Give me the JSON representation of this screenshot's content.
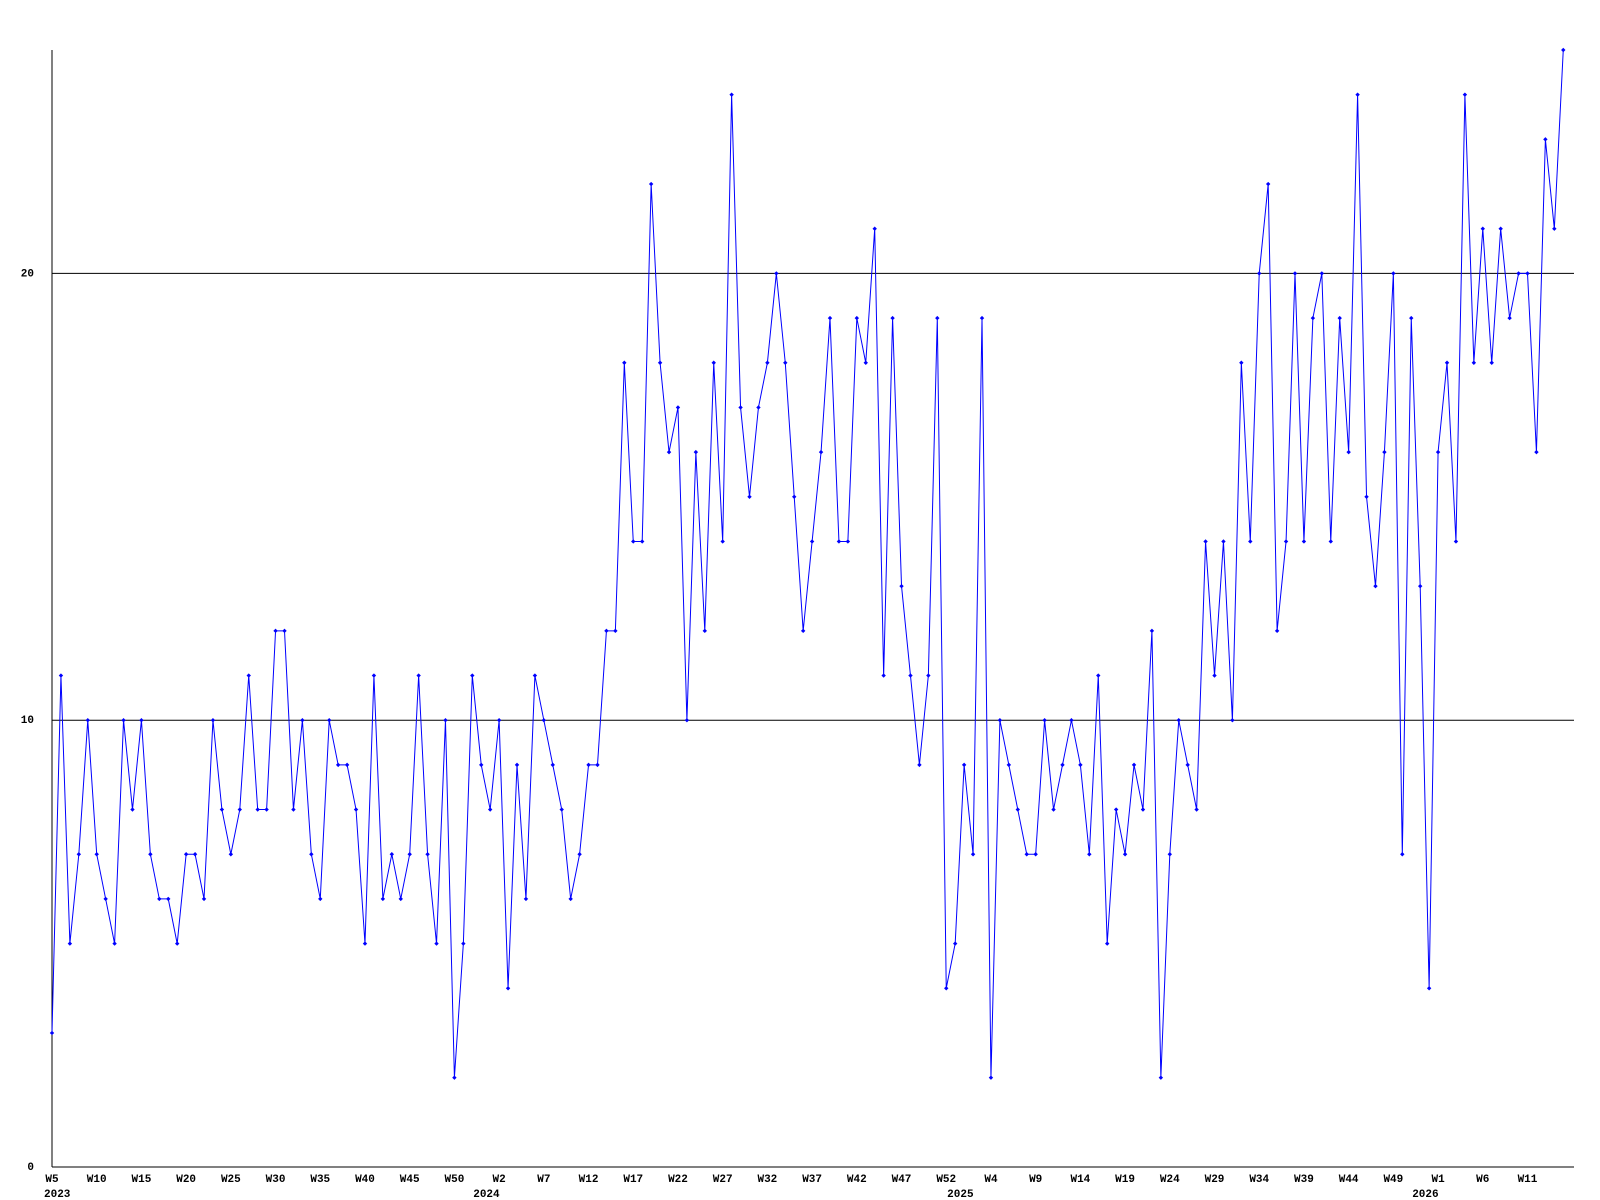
{
  "chart_data": {
    "type": "line",
    "categories": [
      "W5",
      null,
      null,
      null,
      null,
      "W10",
      null,
      null,
      null,
      null,
      "W15",
      null,
      null,
      null,
      null,
      "W20",
      null,
      null,
      null,
      null,
      "W25",
      null,
      null,
      null,
      null,
      "W30",
      null,
      null,
      null,
      null,
      "W35",
      null,
      null,
      null,
      null,
      "W40",
      null,
      null,
      null,
      null,
      "W45",
      null,
      null,
      null,
      null,
      "W50",
      null,
      null,
      null,
      null,
      "W2",
      null,
      null,
      null,
      null,
      "W7",
      null,
      null,
      null,
      null,
      "W12",
      null,
      null,
      null,
      null,
      "W17",
      null,
      null,
      null,
      null,
      "W22",
      null,
      null,
      null,
      null,
      "W27",
      null,
      null,
      null,
      null,
      "W32",
      null,
      null,
      null,
      null,
      "W37",
      null,
      null,
      null,
      null,
      "W42",
      null,
      null,
      null,
      null,
      "W47",
      null,
      null,
      null,
      null,
      "W52",
      null,
      null,
      null,
      null,
      "W4",
      null,
      null,
      null,
      null,
      "W9",
      null,
      null,
      null,
      null,
      "W14",
      null,
      null,
      null,
      null,
      "W19",
      null,
      null,
      null,
      null,
      "W24",
      null,
      null,
      null,
      null,
      "W29",
      null,
      null,
      null,
      null,
      "W34",
      null,
      null,
      null,
      null,
      "W39",
      null,
      null,
      null,
      null,
      "W44",
      null,
      null,
      null,
      null,
      "W49",
      null,
      null,
      null,
      null,
      "W1",
      null,
      null,
      null,
      null,
      "W6",
      null,
      null,
      null,
      null,
      "W11",
      null,
      null,
      null,
      null
    ],
    "year_labels": [
      {
        "category": 0,
        "label": "2023"
      },
      {
        "category": 48,
        "label": "2024"
      },
      {
        "category": 101,
        "label": "2025"
      },
      {
        "category": 153,
        "label": "2026"
      }
    ],
    "series": [
      {
        "color": "#0000ff",
        "values": [
          3,
          11,
          5,
          7,
          10,
          7,
          6,
          5,
          10,
          8,
          10,
          7,
          6,
          6,
          5,
          7,
          7,
          6,
          10,
          8,
          7,
          8,
          11,
          8,
          8,
          12,
          12,
          8,
          10,
          7,
          6,
          10,
          9,
          9,
          8,
          5,
          11,
          6,
          7,
          6,
          7,
          11,
          7,
          5,
          10,
          2,
          5,
          11,
          9,
          8,
          10,
          4,
          9,
          6,
          11,
          10,
          9,
          8,
          6,
          7,
          9,
          9,
          12,
          12,
          18,
          14,
          14,
          22,
          18,
          16,
          17,
          10,
          16,
          12,
          18,
          14,
          24,
          17,
          15,
          17,
          18,
          20,
          18,
          15,
          12,
          14,
          16,
          19,
          14,
          14,
          19,
          18,
          21,
          11,
          19,
          13,
          11,
          9,
          11,
          19,
          4,
          5,
          9,
          7,
          19,
          2,
          10,
          9,
          8,
          7,
          7,
          10,
          8,
          9,
          10,
          9,
          7,
          11,
          5,
          8,
          7,
          9,
          8,
          12,
          2,
          7,
          10,
          9,
          8,
          14,
          11,
          14,
          10,
          18,
          14,
          20,
          22,
          12,
          14,
          20,
          14,
          19,
          20,
          14,
          19,
          16,
          24,
          15,
          13,
          16,
          20,
          7,
          19,
          13,
          4,
          16,
          18,
          14,
          24,
          18,
          21,
          18,
          21,
          19,
          20,
          20,
          16,
          23,
          21,
          25
        ]
      }
    ],
    "ylim": [
      0,
      25
    ],
    "yticks": [
      0,
      10,
      20
    ],
    "grid": true
  }
}
